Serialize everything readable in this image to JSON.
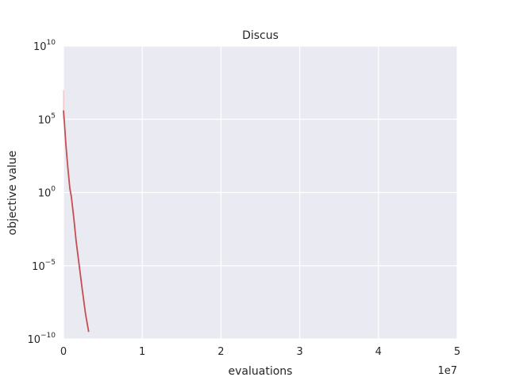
{
  "chart_data": {
    "type": "line",
    "title": "Discus",
    "xlabel": "evaluations",
    "ylabel": "objective value",
    "x_offset_label": "1e7",
    "xlim": [
      0,
      50000000
    ],
    "ylim": [
      1e-10,
      10000000000.0
    ],
    "yscale": "log",
    "grid": true,
    "x_ticks": [
      {
        "value": 0,
        "label": "0"
      },
      {
        "value": 10000000,
        "label": "1"
      },
      {
        "value": 20000000,
        "label": "2"
      },
      {
        "value": 30000000,
        "label": "3"
      },
      {
        "value": 40000000,
        "label": "4"
      },
      {
        "value": 50000000,
        "label": "5"
      }
    ],
    "y_ticks": [
      {
        "value": 10000000000.0,
        "base": "10",
        "exp": "10"
      },
      {
        "value": 100000.0,
        "base": "10",
        "exp": "5"
      },
      {
        "value": 1,
        "base": "10",
        "exp": "0"
      },
      {
        "value": 1e-05,
        "base": "10",
        "exp": "−5"
      },
      {
        "value": 1e-10,
        "base": "10",
        "exp": "−10"
      }
    ],
    "series": [
      {
        "color": "#c44e52",
        "points": [
          [
            0,
            400000
          ],
          [
            100000,
            80000
          ],
          [
            300000,
            2000
          ],
          [
            500000,
            100
          ],
          [
            800000,
            2
          ],
          [
            1000000,
            0.5
          ],
          [
            1300000,
            0.02
          ],
          [
            1600000,
            0.0005
          ],
          [
            2000000,
            1e-05
          ],
          [
            2400000,
            2e-07
          ],
          [
            2800000,
            5e-09
          ],
          [
            3200000,
            3e-10
          ]
        ]
      }
    ],
    "bands": [
      {
        "color": "#f5c2c4",
        "points": [
          [
            0,
            10000000
          ],
          [
            0,
            100000
          ],
          [
            50000,
            3000000
          ]
        ]
      }
    ],
    "colors": {
      "background": "#eaeaf2",
      "grid": "#ffffff"
    }
  }
}
